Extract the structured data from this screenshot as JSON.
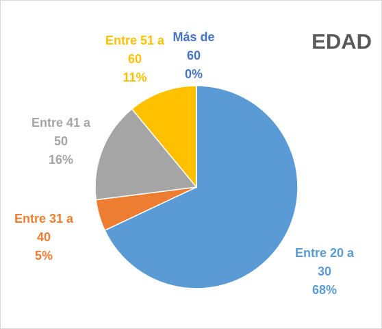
{
  "chart_data": {
    "type": "pie",
    "title": "EDAD",
    "categories": [
      "Entre 20 a 30",
      "Entre 31 a 40",
      "Entre 41 a 50",
      "Entre 51 a 60",
      "Más de 60"
    ],
    "values": [
      68,
      5,
      16,
      11,
      0
    ],
    "value_labels": [
      "68%",
      "5%",
      "16%",
      "11%",
      "0%"
    ],
    "colors": [
      "#5b9bd5",
      "#ed7d31",
      "#a5a5a5",
      "#ffc000",
      "#4472c4"
    ]
  }
}
